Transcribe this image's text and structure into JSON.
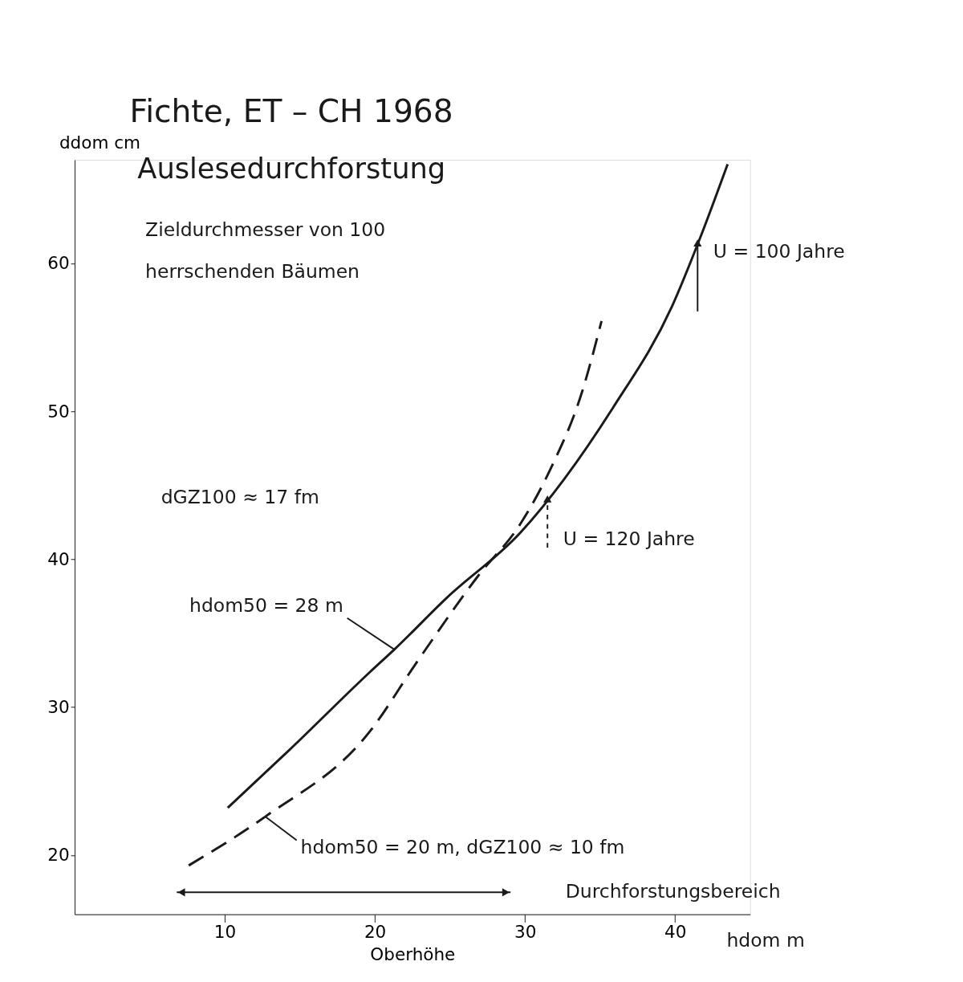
{
  "chart_data": {
    "type": "line",
    "title": "Fichte, ET – CH 1968",
    "subtitle": "Auslesedurchforstung",
    "xlabel": "Oberhöhe",
    "ylabel": "ddom cm",
    "xlim": [
      0,
      45
    ],
    "ylim": [
      16,
      67
    ],
    "xticks": [
      10,
      20,
      30,
      40
    ],
    "yticks": [
      20,
      30,
      40,
      50,
      60
    ],
    "grid": false,
    "marker": "none",
    "series": [
      {
        "color": "#1a1a1a",
        "line_style": "solid",
        "x": [
          10.2,
          14.3,
          19.7,
          21.3,
          24.8,
          29.7,
          35.9,
          39.8,
          41.7,
          43.5
        ],
        "values": [
          23.2,
          27.1,
          32.4,
          33.9,
          37.4,
          41.8,
          50.3,
          57.1,
          61.8,
          66.7
        ]
      },
      {
        "color": "#1a1a1a",
        "line_style": "dashed",
        "x": [
          7.6,
          12.7,
          19.7,
          22.7,
          26.9,
          29.7,
          31.7,
          33.8,
          35.1
        ],
        "values": [
          19.3,
          22.6,
          28.4,
          32.9,
          38.9,
          42.4,
          46.1,
          51.3,
          56.1
        ]
      }
    ],
    "annotations": [
      "Durchforstungsbereich",
      "Zieldurchmesser von 100\nherrschenden Bäumen",
      {
        "text": "U = 100 Jahre",
        "x": 41.5,
        "y": 61.8
      },
      {
        "text": "U = 120 Jahre",
        "x": 31.5,
        "y": 44.5
      },
      "dGZ100 ≈ 17 fm",
      {
        "text": "hdom50 = 28 m",
        "x": 21.3,
        "y": 33.9
      },
      {
        "text": "hdom50 = 20 m, dGZ100 ≈ 10 fm",
        "x": 12.7,
        "y": 22.6
      },
      "hdom m"
    ]
  }
}
